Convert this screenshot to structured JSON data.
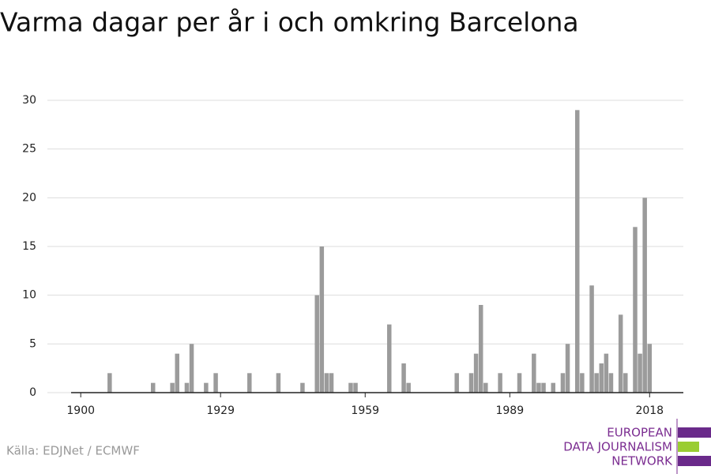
{
  "chart_data": {
    "type": "bar",
    "title": "Varma dagar per år i och omkring Barcelona",
    "source": "Källa: EDJNet / ECMWF",
    "logo": [
      "EUROPEAN",
      "DATA JOURNALISM",
      "NETWORK"
    ],
    "color": "#9b9b9b",
    "x": [
      1906,
      1915,
      1919,
      1920,
      1922,
      1923,
      1926,
      1928,
      1935,
      1941,
      1946,
      1949,
      1950,
      1951,
      1952,
      1956,
      1957,
      1964,
      1967,
      1968,
      1978,
      1981,
      1982,
      1983,
      1984,
      1987,
      1991,
      1994,
      1995,
      1996,
      1998,
      2000,
      2001,
      2003,
      2004,
      2006,
      2007,
      2008,
      2009,
      2010,
      2012,
      2013,
      2015,
      2016,
      2017,
      2018
    ],
    "values": [
      2,
      1,
      1,
      4,
      1,
      5,
      1,
      2,
      2,
      2,
      1,
      10,
      15,
      2,
      2,
      1,
      1,
      7,
      3,
      1,
      2,
      2,
      4,
      9,
      1,
      2,
      2,
      4,
      1,
      1,
      1,
      2,
      5,
      29,
      2,
      11,
      2,
      3,
      4,
      2,
      8,
      2,
      17,
      4,
      20,
      5
    ],
    "xlim": [
      1898,
      2025
    ],
    "xticks": [
      1900,
      1929,
      1959,
      1989,
      2018
    ],
    "ylim": [
      0,
      30
    ],
    "yticks": [
      0,
      5,
      10,
      15,
      20,
      25,
      30
    ],
    "grid": true
  }
}
